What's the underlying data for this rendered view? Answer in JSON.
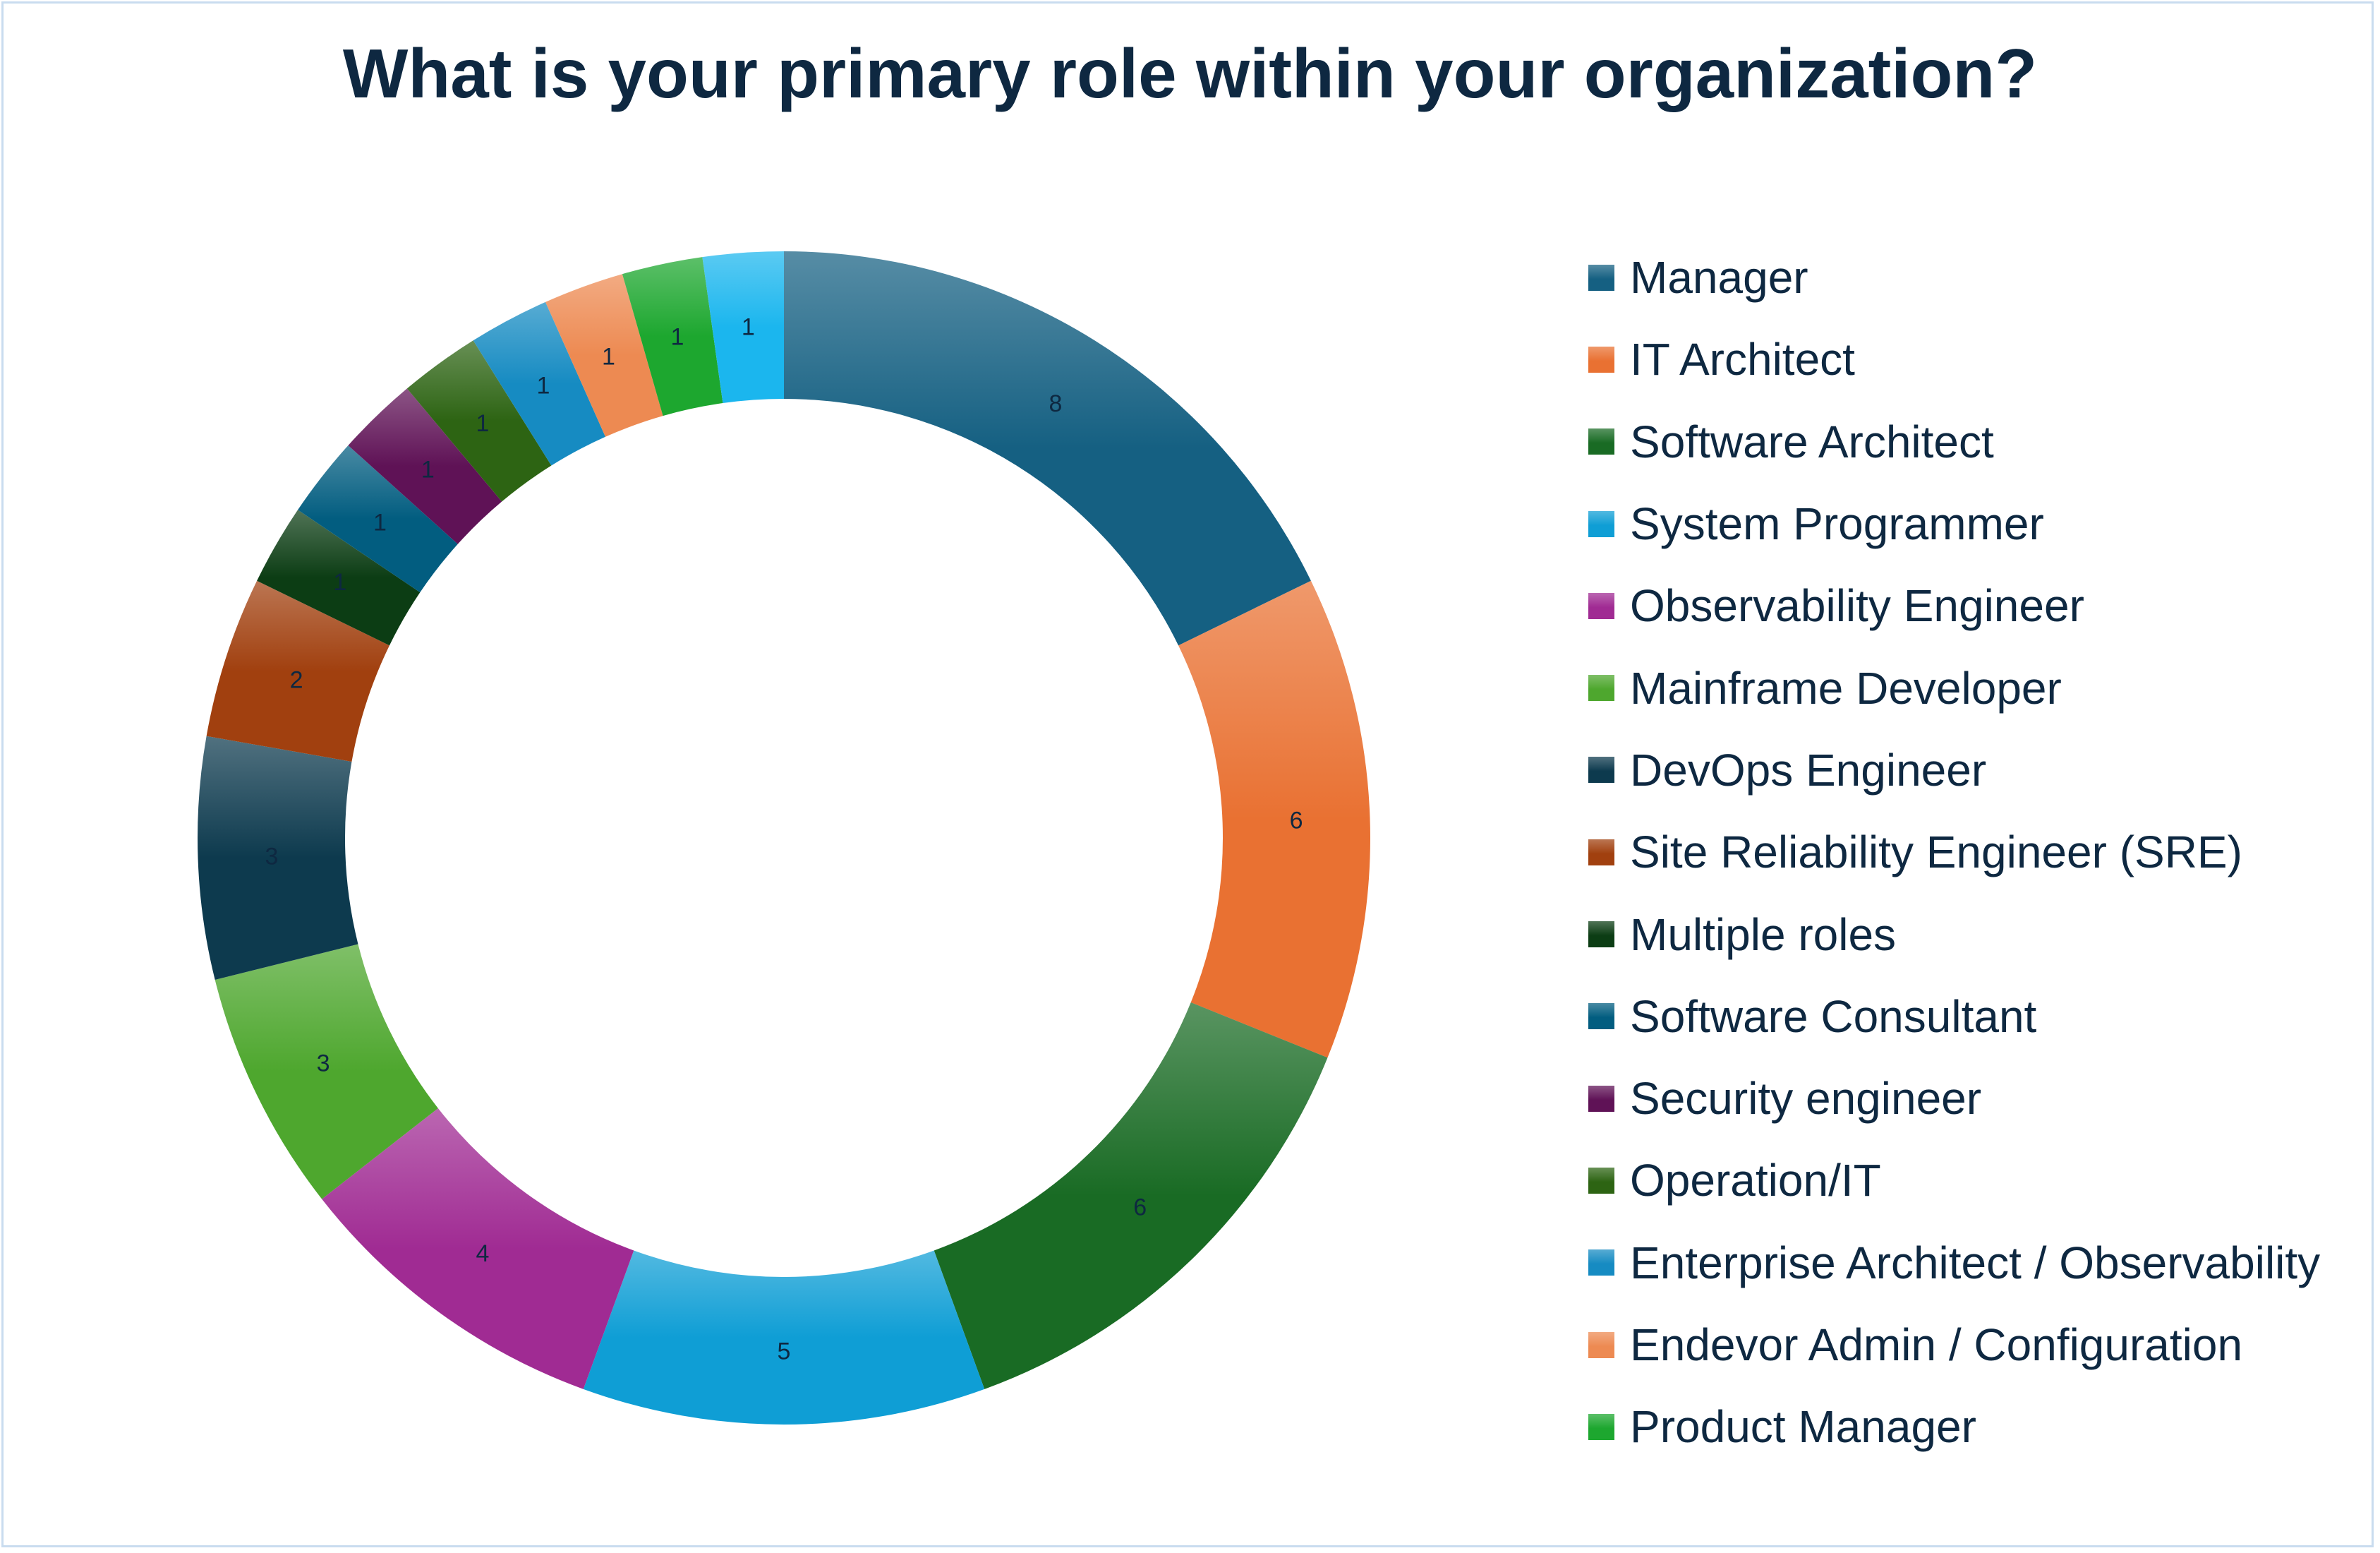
{
  "chart_data": {
    "type": "pie",
    "variant": "doughnut",
    "title": "What is your primary role within your organization?",
    "legend_position": "right",
    "data_labels": true,
    "slices": [
      {
        "name": "Manager",
        "value": 8,
        "color": "#156082"
      },
      {
        "name": "IT Architect",
        "value": 6,
        "color": "#e97132"
      },
      {
        "name": "Software Architect",
        "value": 6,
        "color": "#196b24"
      },
      {
        "name": "System Programmer",
        "value": 5,
        "color": "#0f9ed5"
      },
      {
        "name": "Observability Engineer",
        "value": 4,
        "color": "#a02b93"
      },
      {
        "name": "Mainframe Developer",
        "value": 3,
        "color": "#4ea72e"
      },
      {
        "name": "DevOps Engineer",
        "value": 3,
        "color": "#0d3a4e"
      },
      {
        "name": "Site Reliability Engineer (SRE)",
        "value": 2,
        "color": "#a1400f"
      },
      {
        "name": "Multiple roles",
        "value": 1,
        "color": "#0c3d14"
      },
      {
        "name": "Software Consultant",
        "value": 1,
        "color": "#025d80"
      },
      {
        "name": "Security engineer",
        "value": 1,
        "color": "#5f1256"
      },
      {
        "name": "Operation/IT",
        "value": 1,
        "color": "#2d6413"
      },
      {
        "name": "Enterprise Architect / Observability",
        "value": 1,
        "color": "#168bc2"
      },
      {
        "name": "Endevor Admin / Configuration",
        "value": 1,
        "color": "#ed8a52"
      },
      {
        "name": "Product Manager",
        "value": 1,
        "color": "#1da72f"
      },
      {
        "name": "",
        "value": 1,
        "color": "#1bb6ee"
      }
    ]
  }
}
